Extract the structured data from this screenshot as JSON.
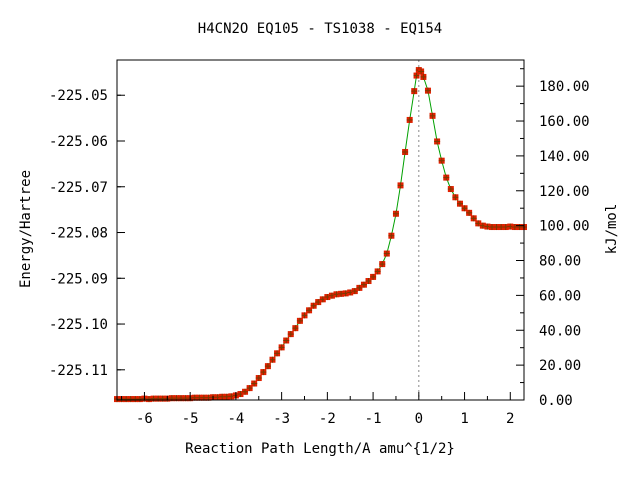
{
  "chart_data": {
    "type": "line",
    "title": "H4CN2O   EQ105 - TS1038 - EQ154",
    "xlabel": "Reaction Path Length/A amu^{1/2}",
    "ylabel": "Energy/Hartree",
    "y2label": "kJ/mol",
    "xlim": [
      -6.6,
      2.3
    ],
    "ylim": [
      -225.1166,
      -225.0423
    ],
    "y2lim": [
      0.0,
      195.0
    ],
    "x_ticks": [
      -6,
      -5,
      -4,
      -3,
      -2,
      -1,
      0,
      1,
      2
    ],
    "x_tick_labels": [
      "-6",
      "-5",
      "-4",
      "-3",
      "-2",
      "-1",
      "0",
      "1",
      "2"
    ],
    "y_ticks": [
      -225.05,
      -225.06,
      -225.07,
      -225.08,
      -225.09,
      -225.1,
      -225.11
    ],
    "y_tick_labels": [
      "-225.05",
      "-225.06",
      "-225.07",
      "-225.08",
      "-225.09",
      "-225.10",
      "-225.11"
    ],
    "y2_ticks": [
      0,
      20,
      40,
      60,
      80,
      100,
      120,
      140,
      160,
      180
    ],
    "y2_tick_labels": [
      "0.00",
      "20.00",
      "40.00",
      "60.00",
      "80.00",
      "100.00",
      "120.00",
      "140.00",
      "160.00",
      "180.00"
    ],
    "ts_x": 0.0,
    "series": [
      {
        "line_color": "#00a000",
        "marker_color": "#e02000",
        "points": [
          [
            -6.6,
            -225.1164
          ],
          [
            -6.5,
            -225.1164
          ],
          [
            -6.4,
            -225.1164
          ],
          [
            -6.3,
            -225.1164
          ],
          [
            -6.2,
            -225.1164
          ],
          [
            -6.1,
            -225.1164
          ],
          [
            -6.0,
            -225.1163
          ],
          [
            -5.9,
            -225.1164
          ],
          [
            -5.8,
            -225.1163
          ],
          [
            -5.7,
            -225.1163
          ],
          [
            -5.6,
            -225.1163
          ],
          [
            -5.5,
            -225.1163
          ],
          [
            -5.4,
            -225.1162
          ],
          [
            -5.3,
            -225.1162
          ],
          [
            -5.2,
            -225.1162
          ],
          [
            -5.1,
            -225.1162
          ],
          [
            -5.0,
            -225.1162
          ],
          [
            -4.9,
            -225.1161
          ],
          [
            -4.8,
            -225.1161
          ],
          [
            -4.7,
            -225.1161
          ],
          [
            -4.6,
            -225.1161
          ],
          [
            -4.5,
            -225.116
          ],
          [
            -4.4,
            -225.116
          ],
          [
            -4.3,
            -225.1159
          ],
          [
            -4.2,
            -225.1159
          ],
          [
            -4.1,
            -225.1158
          ],
          [
            -4.0,
            -225.1156
          ],
          [
            -3.9,
            -225.1153
          ],
          [
            -3.8,
            -225.1148
          ],
          [
            -3.7,
            -225.114
          ],
          [
            -3.6,
            -225.113
          ],
          [
            -3.5,
            -225.1118
          ],
          [
            -3.4,
            -225.1105
          ],
          [
            -3.3,
            -225.1092
          ],
          [
            -3.2,
            -225.1078
          ],
          [
            -3.1,
            -225.1064
          ],
          [
            -3.0,
            -225.1051
          ],
          [
            -2.9,
            -225.1036
          ],
          [
            -2.8,
            -225.1022
          ],
          [
            -2.7,
            -225.1009
          ],
          [
            -2.6,
            -225.0993
          ],
          [
            -2.5,
            -225.0981
          ],
          [
            -2.4,
            -225.097
          ],
          [
            -2.3,
            -225.096
          ],
          [
            -2.2,
            -225.0952
          ],
          [
            -2.1,
            -225.0946
          ],
          [
            -2.0,
            -225.0941
          ],
          [
            -1.9,
            -225.0938
          ],
          [
            -1.8,
            -225.0935
          ],
          [
            -1.7,
            -225.0934
          ],
          [
            -1.6,
            -225.0933
          ],
          [
            -1.5,
            -225.0931
          ],
          [
            -1.4,
            -225.0928
          ],
          [
            -1.3,
            -225.0921
          ],
          [
            -1.2,
            -225.0914
          ],
          [
            -1.1,
            -225.0906
          ],
          [
            -1.0,
            -225.0897
          ],
          [
            -0.9,
            -225.0885
          ],
          [
            -0.8,
            -225.0869
          ],
          [
            -0.7,
            -225.0846
          ],
          [
            -0.6,
            -225.0807
          ],
          [
            -0.5,
            -225.0759
          ],
          [
            -0.4,
            -225.0697
          ],
          [
            -0.3,
            -225.0624
          ],
          [
            -0.2,
            -225.0554
          ],
          [
            -0.1,
            -225.0491
          ],
          [
            -0.05,
            -225.0457
          ],
          [
            0.0,
            -225.0445
          ],
          [
            0.05,
            -225.0448
          ],
          [
            0.1,
            -225.046
          ],
          [
            0.2,
            -225.049
          ],
          [
            0.3,
            -225.0545
          ],
          [
            0.4,
            -225.0601
          ],
          [
            0.5,
            -225.0643
          ],
          [
            0.6,
            -225.068
          ],
          [
            0.7,
            -225.0705
          ],
          [
            0.8,
            -225.0723
          ],
          [
            0.9,
            -225.0737
          ],
          [
            1.0,
            -225.0747
          ],
          [
            1.1,
            -225.0757
          ],
          [
            1.2,
            -225.0769
          ],
          [
            1.3,
            -225.078
          ],
          [
            1.4,
            -225.0785
          ],
          [
            1.5,
            -225.0787
          ],
          [
            1.6,
            -225.0788
          ],
          [
            1.7,
            -225.0788
          ],
          [
            1.8,
            -225.0788
          ],
          [
            1.9,
            -225.0788
          ],
          [
            2.0,
            -225.0787
          ],
          [
            2.1,
            -225.0788
          ],
          [
            2.2,
            -225.0788
          ],
          [
            2.3,
            -225.0788
          ]
        ]
      }
    ]
  }
}
